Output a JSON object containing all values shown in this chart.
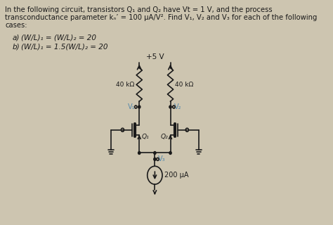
{
  "title_line1": "In the following circuit, transistors Q₁ and Q₂ have Vt = 1 V, and the process",
  "title_line2": "transconductance parameter kₙ’ = 100 μA/V². Find V₁, V₂ and V₃ for each of the following",
  "title_line3": "cases:",
  "case_a_label": "a)",
  "case_a_text": "(W/L)₁ = (W/L)₂ = 20",
  "case_b_label": "b)",
  "case_b_text": "(W/L)₁ = 1.5(W/L)₂ = 20",
  "vdd": "+5 V",
  "r1_label": "40 kΩ",
  "r2_label": "40 kΩ",
  "v1_label": "V₁",
  "v2_label": "V₂",
  "v3_label": "V₃",
  "q1_label": "Q₁",
  "q2_label": "Q₂",
  "current_label": "200 μA",
  "bg_color": "#cdc5b0",
  "text_color": "#1a1a1a",
  "blue_color": "#5588aa"
}
